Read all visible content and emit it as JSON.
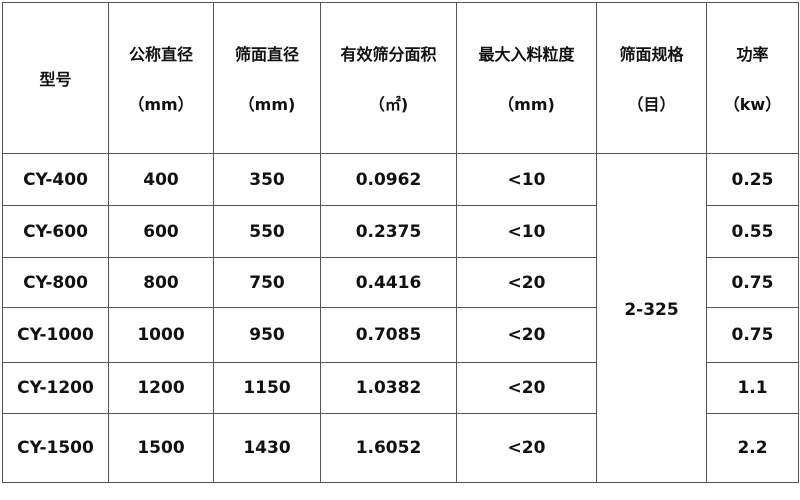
{
  "table": {
    "headers": [
      {
        "line1": "型号",
        "line2": ""
      },
      {
        "line1": "公称直径",
        "line2": "（mm）"
      },
      {
        "line1": "筛面直径",
        "line2": "（mm)"
      },
      {
        "line1": "有效筛分面积",
        "line2": "（㎡)"
      },
      {
        "line1": "最大入料粒度",
        "line2": "（mm)"
      },
      {
        "line1": "筛面规格",
        "line2": "（目）"
      },
      {
        "line1": "功率",
        "line2": "（kw）"
      }
    ],
    "rows": [
      [
        "CY-400",
        "400",
        "350",
        "0.0962",
        "<10",
        "0.25"
      ],
      [
        "CY-600",
        "600",
        "550",
        "0.2375",
        "<10",
        "0.55"
      ],
      [
        "CY-800",
        "800",
        "750",
        "0.4416",
        "<20",
        "0.75"
      ],
      [
        "CY-1000",
        "1000",
        "950",
        "0.7085",
        "<20",
        "0.75"
      ],
      [
        "CY-1200",
        "1200",
        "1150",
        "1.0382",
        "<20",
        "1.1"
      ],
      [
        "CY-1500",
        "1500",
        "1430",
        "1.6052",
        "<20",
        "2.2"
      ]
    ],
    "mesh_spec_merged": "2-325"
  }
}
